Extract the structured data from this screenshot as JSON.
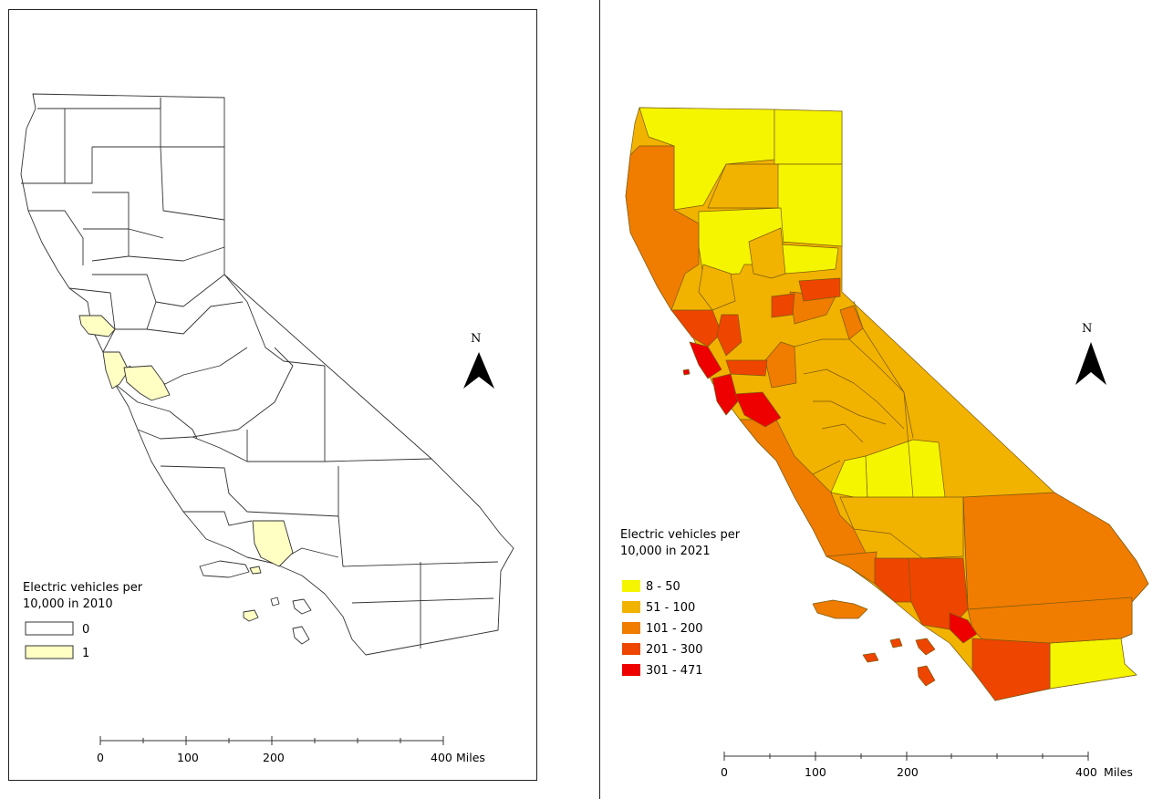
{
  "maps": [
    {
      "id": "2010",
      "legend": {
        "title_line1": "Electric vehicles per",
        "title_line2": "10,000 in 2010",
        "classes": [
          {
            "label": "0",
            "color": "#ffffff"
          },
          {
            "label": "1",
            "color": "#ffffc4"
          }
        ]
      },
      "north_label": "N",
      "scale": {
        "ticks": [
          "0",
          "100",
          "200",
          "400"
        ],
        "unit": "Miles"
      }
    },
    {
      "id": "2021",
      "legend": {
        "title_line1": "Electric vehicles per",
        "title_line2": "10,000 in 2021",
        "classes": [
          {
            "label": "8 - 50",
            "color": "#f5f500"
          },
          {
            "label": "51 - 100",
            "color": "#f2b200"
          },
          {
            "label": "101 - 200",
            "color": "#f07c00"
          },
          {
            "label": "201 - 300",
            "color": "#ee4500"
          },
          {
            "label": "301 - 471",
            "color": "#ee0000"
          }
        ]
      },
      "north_label": "N",
      "scale": {
        "ticks": [
          "0",
          "100",
          "200",
          "400"
        ],
        "unit": "Miles"
      }
    }
  ]
}
